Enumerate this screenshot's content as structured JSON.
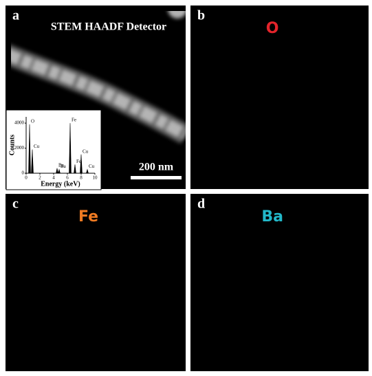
{
  "panels": [
    {
      "letter": "a",
      "title": "STEM HAADF Detector",
      "color": "#ffffff"
    },
    {
      "letter": "b",
      "title": "O",
      "color": "#e3242b"
    },
    {
      "letter": "c",
      "title": "Fe",
      "color": "#ef7a22"
    },
    {
      "letter": "d",
      "title": "Ba",
      "color": "#22b8c9"
    }
  ],
  "scale_bar": "200 nm",
  "inset": {
    "type": "spectrum",
    "x_label": "Energy (keV)",
    "y_label": "Counts",
    "xlim": [
      0,
      10
    ],
    "ylim": [
      0,
      4500
    ],
    "xticks": [
      0,
      2,
      4,
      6,
      8,
      10
    ],
    "yticks": [
      0,
      2000,
      4000
    ],
    "peaks": [
      {
        "label": "O",
        "energy": 0.5,
        "counts": 3900
      },
      {
        "label": "Cu",
        "energy": 0.9,
        "counts": 1900
      },
      {
        "label": "Ba",
        "energy": 4.5,
        "counts": 400
      },
      {
        "label": "Ba",
        "energy": 4.8,
        "counts": 300
      },
      {
        "label": "Fe",
        "energy": 6.4,
        "counts": 4000
      },
      {
        "label": "Fe",
        "energy": 7.1,
        "counts": 700
      },
      {
        "label": "Cu",
        "energy": 8.0,
        "counts": 1500
      },
      {
        "label": "Cu",
        "energy": 8.9,
        "counts": 300
      }
    ]
  }
}
